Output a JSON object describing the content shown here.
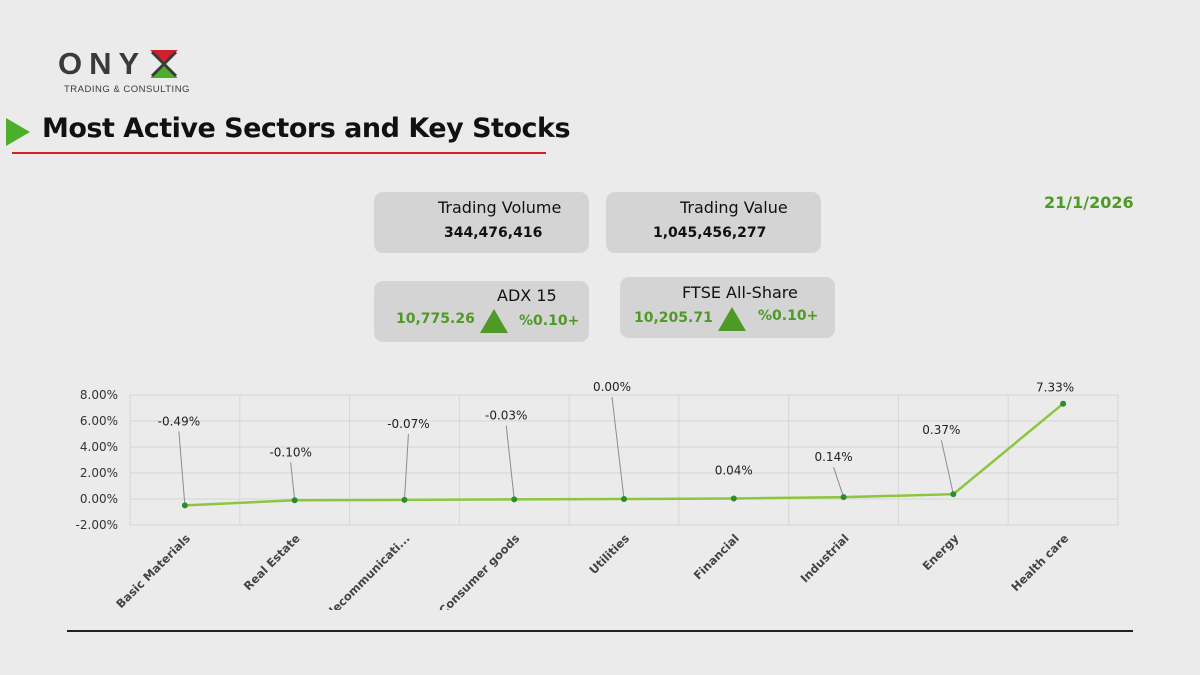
{
  "logo": {
    "word": "ONY",
    "subtitle": "TRADING & CONSULTING"
  },
  "title": "Most Active Sectors and Key Stocks",
  "date": "21/1/2026",
  "cards": {
    "trading_volume": {
      "label": "Trading Volume",
      "value": "344,476,416"
    },
    "trading_value": {
      "label": "Trading Value",
      "value": "1,045,456,277"
    },
    "adx": {
      "label": "ADX 15",
      "value": "10,775.26",
      "change": "%0.10+"
    },
    "ftse": {
      "label": "FTSE All-Share",
      "value": "10,205.71",
      "change": "%0.10+"
    }
  },
  "colors": {
    "accent_green": "#4e9a26",
    "line": "#8cc63f",
    "title_rule": "#d0202a"
  },
  "chart_data": {
    "type": "line",
    "categories": [
      "Basic Materials",
      "Real Estate",
      "Telecommunicati...",
      "Consumer goods",
      "Utilities",
      "Financial",
      "Industrial",
      "Energy",
      "Health care"
    ],
    "values": [
      -0.49,
      -0.1,
      -0.07,
      -0.03,
      0.0,
      0.04,
      0.14,
      0.37,
      7.33
    ],
    "data_labels": [
      "-0.49%",
      "-0.10%",
      "-0.07%",
      "-0.03%",
      "0.00%",
      "0.04%",
      "0.14%",
      "0.37%",
      "7.33%"
    ],
    "y_ticks": [
      "8.00%",
      "6.00%",
      "4.00%",
      "2.00%",
      "0.00%",
      "-2.00%"
    ],
    "ylim": [
      -2,
      8
    ],
    "grid": true
  }
}
